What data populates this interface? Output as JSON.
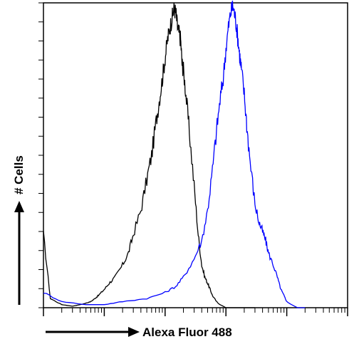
{
  "chart_data": {
    "type": "line",
    "title": "",
    "xlabel": "Alexa Fluor 488",
    "ylabel": "# Cells",
    "x_scale": "log",
    "xlim": [
      1,
      100000
    ],
    "ylim": [
      0,
      100
    ],
    "grid": false,
    "legend": "none",
    "series": [
      {
        "name": "",
        "color": "#000000",
        "x": [
          1,
          1.3,
          2,
          3,
          4,
          5,
          6,
          7,
          8,
          10,
          12,
          15,
          20,
          25,
          30,
          40,
          50,
          60,
          70,
          80,
          90,
          100,
          110,
          120,
          130,
          140,
          150,
          160,
          170,
          180,
          190,
          200,
          220,
          250,
          300,
          350,
          400,
          450,
          500,
          550,
          600,
          700,
          800,
          900,
          1000,
          1200,
          1500,
          2000,
          3000
        ],
        "y": [
          24,
          3,
          1,
          0.5,
          1,
          1.5,
          2,
          3,
          4,
          6,
          8,
          10,
          14,
          18,
          24,
          32,
          42,
          50,
          60,
          68,
          75,
          82,
          88,
          92,
          95,
          98,
          97,
          92,
          90,
          88,
          80,
          78,
          70,
          58,
          40,
          24,
          14,
          10,
          8,
          6,
          4,
          2,
          1,
          0.5,
          0,
          0,
          0,
          0,
          0
        ]
      },
      {
        "name": "",
        "color": "#0000ff",
        "x": [
          1,
          2,
          5,
          10,
          20,
          50,
          100,
          150,
          200,
          300,
          400,
          500,
          600,
          700,
          800,
          900,
          1000,
          1100,
          1200,
          1300,
          1400,
          1500,
          1600,
          1700,
          1800,
          2000,
          2200,
          2500,
          3000,
          3500,
          4000,
          4500,
          5000,
          6000,
          7000,
          8000,
          9000,
          10000,
          12000,
          15000,
          20000
        ],
        "y": [
          5,
          2,
          1,
          1,
          2,
          3,
          5,
          7,
          10,
          16,
          22,
          32,
          45,
          58,
          68,
          75,
          85,
          92,
          97,
          99,
          96,
          92,
          87,
          82,
          78,
          70,
          60,
          48,
          34,
          28,
          25,
          22,
          18,
          14,
          10,
          6,
          4,
          2,
          1,
          0,
          0
        ]
      }
    ]
  }
}
